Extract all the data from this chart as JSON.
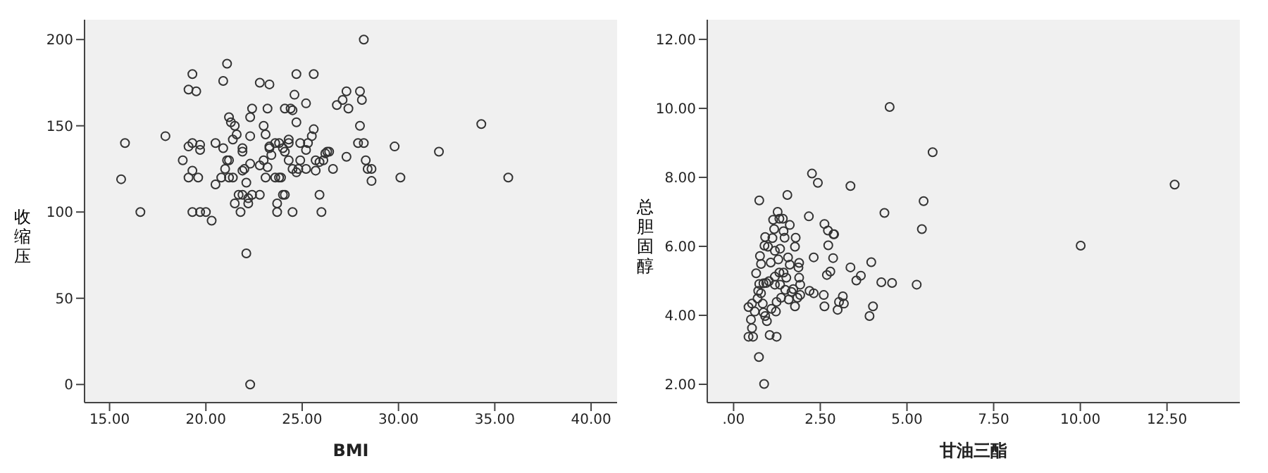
{
  "chart_data": [
    {
      "type": "scatter",
      "xlabel": "BMI",
      "ylabel": "收缩压",
      "marker": "circle",
      "xlim": [
        13.7,
        41.35
      ],
      "ylim": [
        -10.5,
        211.5
      ],
      "xticks": [
        {
          "value": 15,
          "label": "15.00"
        },
        {
          "value": 20,
          "label": "20.00"
        },
        {
          "value": 25,
          "label": "25.00"
        },
        {
          "value": 30,
          "label": "30.00"
        },
        {
          "value": 35,
          "label": "35.00"
        },
        {
          "value": 40,
          "label": "40.00"
        }
      ],
      "yticks": [
        0,
        50,
        100,
        150,
        200
      ],
      "series": [
        {
          "color": "#333333",
          "x": [
            15.6,
            15.8,
            16.6,
            17.9,
            18.8,
            19.1,
            19.3,
            19.1,
            19.3,
            19.5,
            19.1,
            19.3,
            19.6,
            19.7,
            19.7,
            19.3,
            19.7,
            20.0,
            20.3,
            20.5,
            20.5,
            20.9,
            21.1,
            20.9,
            20.8,
            21.0,
            21.1,
            21.2,
            21.2,
            21.3,
            21.2,
            21.4,
            21.4,
            21.5,
            21.6,
            21.5,
            21.7,
            21.8,
            21.9,
            21.9,
            21.9,
            21.9,
            22.0,
            22.1,
            22.2,
            22.3,
            22.3,
            22.3,
            22.4,
            22.2,
            22.4,
            22.1,
            22.3,
            22.8,
            22.8,
            23.0,
            22.8,
            23.0,
            23.1,
            23.2,
            23.1,
            23.2,
            23.3,
            23.3,
            23.3,
            23.4,
            23.6,
            23.6,
            23.7,
            23.7,
            23.8,
            23.8,
            23.9,
            24.0,
            24.1,
            24.0,
            24.1,
            24.1,
            24.3,
            24.3,
            24.3,
            24.4,
            24.5,
            24.6,
            24.5,
            24.5,
            24.7,
            24.7,
            24.7,
            24.8,
            24.9,
            24.9,
            25.2,
            25.2,
            25.2,
            25.3,
            25.5,
            25.6,
            25.6,
            25.7,
            25.7,
            25.9,
            26.0,
            25.9,
            26.1,
            26.2,
            26.3,
            26.4,
            26.6,
            26.8,
            27.1,
            27.3,
            27.4,
            27.3,
            28.0,
            28.0,
            27.9,
            28.2,
            28.1,
            28.2,
            28.3,
            28.4,
            28.6,
            28.6,
            29.8,
            30.1,
            32.1,
            34.3,
            35.7
          ],
          "values": [
            119,
            140,
            100,
            144,
            130,
            138,
            140,
            171,
            180,
            170,
            120,
            124,
            120,
            139,
            136,
            100,
            100,
            100,
            95,
            116,
            140,
            176,
            186,
            137,
            120,
            125,
            130,
            130,
            155,
            152,
            120,
            120,
            142,
            150,
            145,
            105,
            110,
            100,
            110,
            137,
            135,
            124,
            125,
            117,
            108,
            128,
            144,
            155,
            160,
            105,
            110,
            76,
            0,
            110,
            175,
            150,
            127,
            130,
            145,
            160,
            120,
            126,
            137,
            138,
            174,
            133,
            140,
            120,
            105,
            100,
            140,
            120,
            120,
            110,
            110,
            137,
            135,
            160,
            142,
            140,
            130,
            160,
            159,
            168,
            100,
            125,
            152,
            180,
            123,
            125,
            140,
            130,
            163,
            125,
            136,
            140,
            144,
            148,
            180,
            130,
            124,
            110,
            100,
            129,
            130,
            134,
            135,
            135,
            125,
            162,
            165,
            170,
            160,
            132,
            170,
            150,
            140,
            140,
            165,
            200,
            130,
            125,
            125,
            118,
            138,
            120,
            135,
            151,
            120
          ]
        }
      ]
    },
    {
      "type": "scatter",
      "xlabel": "甘油三酯",
      "ylabel": "总胆固醇",
      "marker": "circle",
      "xlim": [
        -0.76,
        14.6
      ],
      "ylim": [
        1.47,
        12.57
      ],
      "xticks": [
        {
          "value": 0,
          "label": ".00"
        },
        {
          "value": 2.5,
          "label": "2.50"
        },
        {
          "value": 5,
          "label": "5.00"
        },
        {
          "value": 7.5,
          "label": "7.50"
        },
        {
          "value": 10,
          "label": "10.00"
        },
        {
          "value": 12.5,
          "label": "12.50"
        }
      ],
      "yticks": [
        {
          "value": 2,
          "label": "2.00"
        },
        {
          "value": 4,
          "label": "4.00"
        },
        {
          "value": 6,
          "label": "6.00"
        },
        {
          "value": 8,
          "label": "8.00"
        },
        {
          "value": 10,
          "label": "10.00"
        },
        {
          "value": 12,
          "label": "12.00"
        }
      ],
      "series": [
        {
          "color": "#333333",
          "x": [
            4.5,
            5.74,
            12.72,
            10.01,
            2.26,
            2.43,
            3.37,
            0.74,
            1.55,
            5.48,
            4.35,
            5.43,
            2.17,
            2.62,
            2.72,
            2.88,
            2.9,
            2.73,
            2.31,
            2.87,
            3.37,
            3.97,
            3.67,
            3.54,
            2.79,
            2.69,
            4.26,
            4.57,
            5.28,
            2.19,
            2.31,
            2.6,
            2.62,
            3.15,
            3.04,
            3.18,
            3.0,
            4.02,
            3.92,
            0.88,
            0.73,
            0.43,
            0.43,
            0.53,
            0.5,
            0.53,
            0.56,
            0.61,
            0.65,
            0.69,
            0.71,
            0.74,
            0.76,
            0.79,
            0.79,
            0.84,
            0.86,
            0.89,
            0.91,
            0.94,
            0.96,
            0.91,
            0.99,
            1.07,
            1.09,
            1.04,
            1.12,
            1.14,
            1.17,
            1.19,
            1.19,
            1.19,
            1.22,
            1.24,
            1.24,
            1.27,
            1.29,
            1.32,
            1.34,
            1.32,
            1.34,
            1.37,
            1.42,
            1.44,
            1.47,
            1.44,
            1.49,
            1.52,
            1.57,
            1.59,
            1.62,
            1.62,
            1.67,
            1.72,
            1.77,
            1.79,
            1.77,
            1.84,
            1.87,
            1.89,
            1.89,
            1.92,
            1.92,
            1.02,
            0.86
          ],
          "values": [
            10.04,
            8.73,
            7.79,
            6.02,
            8.11,
            7.84,
            7.75,
            7.33,
            7.49,
            7.31,
            6.97,
            6.5,
            6.87,
            6.65,
            6.46,
            6.35,
            6.35,
            6.03,
            5.68,
            5.66,
            5.39,
            5.54,
            5.15,
            5.01,
            5.27,
            5.17,
            4.96,
            4.94,
            4.89,
            4.71,
            4.64,
            4.59,
            4.26,
            4.55,
            4.39,
            4.34,
            4.16,
            4.26,
            3.98,
            2.01,
            2.79,
            4.24,
            3.38,
            4.34,
            3.88,
            3.63,
            3.38,
            4.11,
            5.22,
            4.49,
            4.71,
            4.91,
            5.72,
            5.49,
            4.64,
            4.34,
            4.08,
            6.02,
            6.27,
            4.94,
            3.83,
            3.98,
            5.99,
            5.53,
            4.19,
            3.43,
            6.24,
            6.77,
            6.5,
            5.87,
            5.12,
            4.89,
            4.11,
            3.38,
            4.39,
            7.0,
            5.62,
            6.8,
            5.93,
            5.24,
            4.89,
            4.51,
            6.8,
            6.44,
            6.25,
            5.24,
            4.74,
            5.09,
            5.68,
            4.46,
            6.62,
            5.47,
            4.68,
            4.76,
            4.26,
            6.25,
            5.99,
            4.51,
            5.39,
            5.52,
            5.09,
            4.89,
            4.59,
            4.99,
            4.93
          ]
        }
      ]
    }
  ]
}
